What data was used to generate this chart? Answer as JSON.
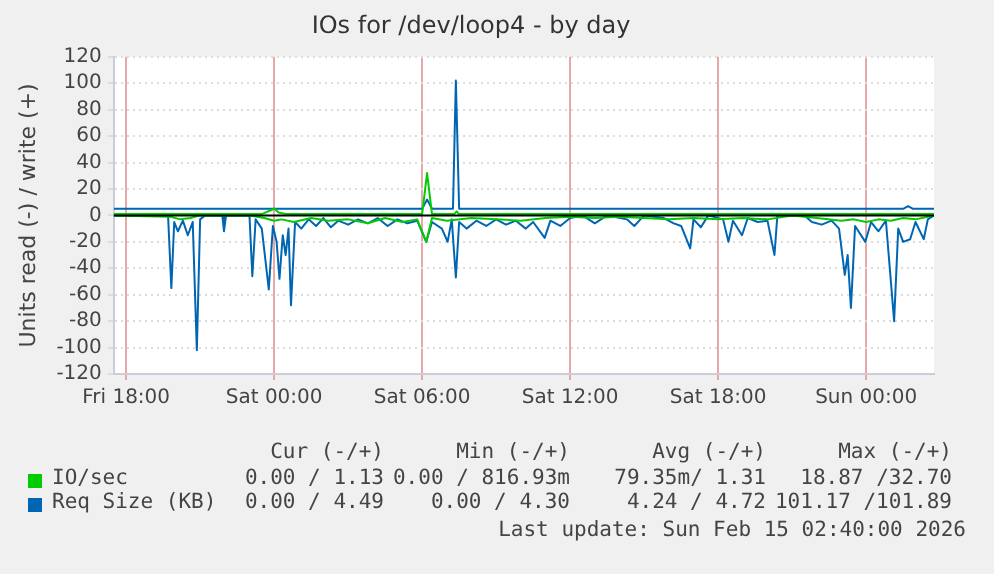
{
  "chart_data": {
    "type": "line",
    "title": "IOs for /dev/loop4 - by day",
    "ylabel": "Units read (-) / write (+)",
    "xlim": [
      "2026-02-13T17:30",
      "2026-02-15T02:45"
    ],
    "xticks": [
      {
        "value": "2026-02-13T18:00",
        "label": "Fri 18:00"
      },
      {
        "value": "2026-02-14T00:00",
        "label": "Sat 00:00"
      },
      {
        "value": "2026-02-14T06:00",
        "label": "Sat 06:00"
      },
      {
        "value": "2026-02-14T12:00",
        "label": "Sat 12:00"
      },
      {
        "value": "2026-02-14T18:00",
        "label": "Sat 18:00"
      },
      {
        "value": "2026-02-15T00:00",
        "label": "Sun 00:00"
      }
    ],
    "ylim": [
      -120,
      120
    ],
    "yticks": [
      -120,
      -100,
      -80,
      -60,
      -40,
      -20,
      0,
      20,
      40,
      60,
      80,
      100,
      120
    ],
    "grid": true,
    "legend": "bottom",
    "ref_lines": [
      {
        "axis": "y",
        "value": 0,
        "color": "#000000"
      }
    ],
    "annotations": [
      "Cur (-/+)",
      "Min (-/+)",
      "Avg (-/+)",
      "Max (-/+)",
      "0.00 / 1.13",
      "0.00 / 816.93m",
      "79.35m/ 1.31",
      "18.87 /32.70",
      "0.00 / 4.49",
      "0.00 / 4.30",
      "4.24 / 4.72",
      "101.17 /101.89",
      "Last update: Sun Feb 15 02:40:00 2026"
    ],
    "series": [
      {
        "color": "#00cc00",
        "x": [
          "2026-02-13T17:30",
          "2026-02-13T19:48",
          "2026-02-13T20:12",
          "2026-02-13T20:36",
          "2026-02-13T21:00",
          "2026-02-13T23:00",
          "2026-02-13T23:36",
          "2026-02-14T00:00",
          "2026-02-14T00:18",
          "2026-02-14T00:48",
          "2026-02-14T01:30",
          "2026-02-14T02:12",
          "2026-02-14T03:00",
          "2026-02-14T03:48",
          "2026-02-14T04:30",
          "2026-02-14T05:12",
          "2026-02-14T05:48",
          "2026-02-14T06:10",
          "2026-02-14T06:24",
          "2026-02-14T07:00",
          "2026-02-14T08:00",
          "2026-02-14T09:00",
          "2026-02-14T10:00",
          "2026-02-14T11:00",
          "2026-02-14T12:00",
          "2026-02-14T13:00",
          "2026-02-14T14:00",
          "2026-02-14T15:00",
          "2026-02-14T16:00",
          "2026-02-14T17:00",
          "2026-02-14T18:00",
          "2026-02-14T19:00",
          "2026-02-14T20:00",
          "2026-02-14T21:00",
          "2026-02-14T22:00",
          "2026-02-14T23:00",
          "2026-02-14T23:30",
          "2026-02-15T00:00",
          "2026-02-15T00:30",
          "2026-02-15T01:00",
          "2026-02-15T01:30",
          "2026-02-15T02:00",
          "2026-02-15T02:45"
        ],
        "values": [
          0,
          -1,
          -3,
          -2,
          0,
          0,
          -2,
          -4,
          -3,
          -5,
          -2,
          -4,
          -3,
          -6,
          -2,
          -5,
          -3,
          -20,
          -2,
          -4,
          -2,
          -3,
          -4,
          -2,
          -1,
          -2,
          -1,
          -2,
          -3,
          -2,
          -3,
          -2,
          -3,
          0,
          -2,
          -4,
          -3,
          -5,
          -3,
          -4,
          -2,
          -3,
          0
        ]
      },
      {
        "name": "IO/sec",
        "color": "#00cc00",
        "x": [
          "2026-02-13T17:30",
          "2026-02-13T23:30",
          "2026-02-14T00:00",
          "2026-02-14T00:12",
          "2026-02-14T00:30",
          "2026-02-14T06:00",
          "2026-02-14T06:12",
          "2026-02-14T06:24",
          "2026-02-14T07:18",
          "2026-02-14T07:24",
          "2026-02-14T07:30",
          "2026-02-15T02:45"
        ],
        "values": [
          1,
          1,
          5,
          2,
          1,
          1,
          32,
          1,
          1,
          3,
          1,
          1
        ]
      },
      {
        "color": "#0066b3",
        "x": [
          "2026-02-13T17:30",
          "2026-02-13T19:42",
          "2026-02-13T19:50",
          "2026-02-13T19:57",
          "2026-02-13T20:06",
          "2026-02-13T20:18",
          "2026-02-13T20:30",
          "2026-02-13T20:42",
          "2026-02-13T20:52",
          "2026-02-13T21:00",
          "2026-02-13T21:12",
          "2026-02-13T21:54",
          "2026-02-13T21:58",
          "2026-02-13T22:03",
          "2026-02-13T23:00",
          "2026-02-13T23:07",
          "2026-02-13T23:15",
          "2026-02-13T23:30",
          "2026-02-13T23:47",
          "2026-02-13T23:57",
          "2026-02-14T00:06",
          "2026-02-14T00:13",
          "2026-02-14T00:21",
          "2026-02-14T00:28",
          "2026-02-14T00:35",
          "2026-02-14T00:41",
          "2026-02-14T00:51",
          "2026-02-14T01:06",
          "2026-02-14T01:24",
          "2026-02-14T01:42",
          "2026-02-14T02:00",
          "2026-02-14T02:18",
          "2026-02-14T02:36",
          "2026-02-14T03:00",
          "2026-02-14T03:24",
          "2026-02-14T03:48",
          "2026-02-14T04:12",
          "2026-02-14T04:36",
          "2026-02-14T05:00",
          "2026-02-14T05:24",
          "2026-02-14T05:48",
          "2026-02-14T06:10",
          "2026-02-14T06:24",
          "2026-02-14T06:48",
          "2026-02-14T07:02",
          "2026-02-14T07:12",
          "2026-02-14T07:22",
          "2026-02-14T07:30",
          "2026-02-14T07:48",
          "2026-02-14T08:12",
          "2026-02-14T08:36",
          "2026-02-14T09:00",
          "2026-02-14T09:24",
          "2026-02-14T09:48",
          "2026-02-14T10:12",
          "2026-02-14T10:30",
          "2026-02-14T10:58",
          "2026-02-14T11:12",
          "2026-02-14T11:36",
          "2026-02-14T12:00",
          "2026-02-14T12:30",
          "2026-02-14T13:00",
          "2026-02-14T13:30",
          "2026-02-14T14:18",
          "2026-02-14T14:36",
          "2026-02-14T15:00",
          "2026-02-14T15:48",
          "2026-02-14T16:12",
          "2026-02-14T16:30",
          "2026-02-14T16:52",
          "2026-02-14T17:00",
          "2026-02-14T17:18",
          "2026-02-14T17:36",
          "2026-02-14T18:12",
          "2026-02-14T18:25",
          "2026-02-14T18:36",
          "2026-02-14T18:58",
          "2026-02-14T19:12",
          "2026-02-14T19:36",
          "2026-02-14T20:00",
          "2026-02-14T20:17",
          "2026-02-14T20:24",
          "2026-02-14T21:30",
          "2026-02-14T21:48",
          "2026-02-14T22:12",
          "2026-02-14T22:36",
          "2026-02-14T22:54",
          "2026-02-14T23:08",
          "2026-02-14T23:15",
          "2026-02-14T23:23",
          "2026-02-14T23:33",
          "2026-02-14T23:58",
          "2026-02-15T00:12",
          "2026-02-15T00:30",
          "2026-02-15T00:48",
          "2026-02-15T01:08",
          "2026-02-15T01:18",
          "2026-02-15T01:30",
          "2026-02-15T01:47",
          "2026-02-15T02:00",
          "2026-02-15T02:20",
          "2026-02-15T02:30",
          "2026-02-15T02:45"
        ],
        "values": [
          0,
          0,
          -55,
          -5,
          -12,
          -4,
          -15,
          -5,
          -102,
          -3,
          0,
          0,
          -12,
          0,
          0,
          -46,
          -3,
          -10,
          -56,
          -8,
          -20,
          -48,
          -15,
          -30,
          -10,
          -68,
          -5,
          -10,
          -3,
          -8,
          -2,
          -9,
          -4,
          -7,
          -3,
          -6,
          -2,
          -8,
          -3,
          -6,
          -4,
          -20,
          -5,
          -10,
          -20,
          -3,
          -47,
          -5,
          -10,
          -4,
          -8,
          -3,
          -7,
          -4,
          -10,
          -5,
          -17,
          -4,
          -8,
          -2,
          0,
          -6,
          0,
          -3,
          -8,
          0,
          -2,
          -6,
          -8,
          -25,
          -3,
          -9,
          0,
          -3,
          -20,
          -4,
          -15,
          -2,
          -5,
          -4,
          -30,
          0,
          0,
          -5,
          -7,
          -4,
          -10,
          -45,
          -30,
          -70,
          -8,
          -20,
          -5,
          -12,
          -4,
          -80,
          -10,
          -20,
          -18,
          -5,
          -18,
          -3,
          0
        ]
      },
      {
        "name": "Req Size (KB)",
        "color": "#0066b3",
        "x": [
          "2026-02-13T17:30",
          "2026-02-14T06:00",
          "2026-02-14T06:12",
          "2026-02-14T06:24",
          "2026-02-14T07:15",
          "2026-02-14T07:22",
          "2026-02-14T07:30",
          "2026-02-15T01:30",
          "2026-02-15T01:42",
          "2026-02-15T01:54",
          "2026-02-15T02:45"
        ],
        "values": [
          5,
          5,
          12,
          5,
          5,
          102,
          5,
          5,
          7,
          5,
          5
        ]
      }
    ]
  }
}
